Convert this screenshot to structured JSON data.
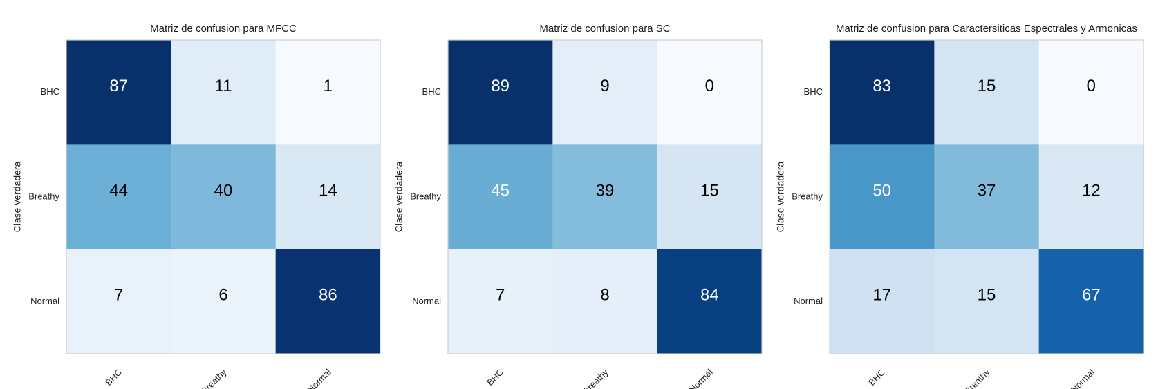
{
  "chart_data": [
    {
      "type": "heatmap",
      "title": "Matriz de confusion para MFCC",
      "ylabel": "Clase verdadera",
      "xlabel": "",
      "x_categories": [
        "BHC",
        "Breathy",
        "Normal"
      ],
      "y_categories": [
        "BHC",
        "Breathy",
        "Normal"
      ],
      "values": [
        [
          87,
          11,
          1
        ],
        [
          44,
          40,
          14
        ],
        [
          7,
          6,
          86
        ]
      ],
      "colormap": "Blues",
      "grid": false
    },
    {
      "type": "heatmap",
      "title": "Matriz de confusion para SC",
      "ylabel": "Clase verdadera",
      "xlabel": "",
      "x_categories": [
        "BHC",
        "Breathy",
        "Normal"
      ],
      "y_categories": [
        "BHC",
        "Breathy",
        "Normal"
      ],
      "values": [
        [
          89,
          9,
          0
        ],
        [
          45,
          39,
          15
        ],
        [
          7,
          8,
          84
        ]
      ],
      "colormap": "Blues",
      "grid": false
    },
    {
      "type": "heatmap",
      "title": "Matriz de confusion para Caractersiticas Espectrales y Armonicas",
      "ylabel": "Clase verdadera",
      "xlabel": "",
      "x_categories": [
        "BHC",
        "Breathy",
        "Normal"
      ],
      "y_categories": [
        "BHC",
        "Breathy",
        "Normal"
      ],
      "values": [
        [
          83,
          15,
          0
        ],
        [
          50,
          37,
          12
        ],
        [
          17,
          15,
          67
        ]
      ],
      "colormap": "Blues",
      "grid": false
    }
  ]
}
